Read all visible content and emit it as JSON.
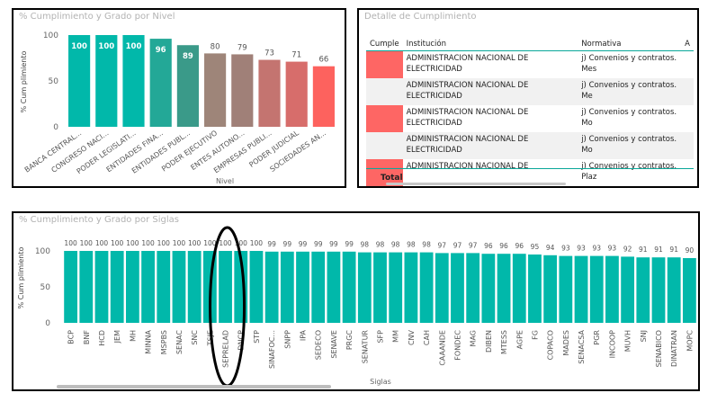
{
  "panel_nivel": {
    "title": "% Cumplimiento y Grado por Nivel",
    "chart_data": {
      "type": "bar",
      "title": "% Cumplimiento y Grado por Nivel",
      "xlabel": "Nivel",
      "ylabel": "% Cum plimiento",
      "ylim": [
        0,
        100
      ],
      "yticks": [
        "0",
        "50",
        "100"
      ],
      "categories": [
        "BANCA CENTRAL...",
        "CONGRESO NACI...",
        "PODER LEGISLATI...",
        "ENTIDADES FINA...",
        "ENTIDADES PUBL...",
        "PODER EJECUTIVO",
        "ENTES AUTONO...",
        "EMPRESAS PUBLI...",
        "PODER JUDICIAL",
        "SOCIEDADES AN..."
      ],
      "values": [
        100,
        100,
        100,
        96,
        89,
        80,
        79,
        73,
        71,
        66
      ],
      "labels": [
        "100",
        "100",
        "100",
        "96",
        "89",
        "80",
        "79",
        "73",
        "71",
        "66"
      ],
      "colors": [
        "#01b8aa",
        "#01b8aa",
        "#01b8aa",
        "#23a897",
        "#3a9a89",
        "#9e8579",
        "#a08078",
        "#c47470",
        "#d76d6b",
        "#fd625e"
      ],
      "label_inside": [
        true,
        true,
        true,
        true,
        true,
        false,
        false,
        false,
        false,
        false
      ],
      "grid": false
    }
  },
  "panel_detalle": {
    "title": "Detalle de Cumplimiento",
    "columns": [
      "Cumple",
      "Institución",
      "Normativa",
      "A"
    ],
    "rows": [
      {
        "institucion": "ADMINISTRACION NACIONAL DE ELECTRICIDAD",
        "normativa": "j) Convenios y contratos. Mes"
      },
      {
        "institucion": "ADMINISTRACION NACIONAL DE ELECTRICIDAD",
        "normativa": "j) Convenios y contratos. Me"
      },
      {
        "institucion": "ADMINISTRACION NACIONAL DE ELECTRICIDAD",
        "normativa": "j) Convenios y contratos. Mo"
      },
      {
        "institucion": "ADMINISTRACION NACIONAL DE ELECTRICIDAD",
        "normativa": "j) Convenios y contratos. Mo"
      },
      {
        "institucion": "ADMINISTRACION NACIONAL DE",
        "normativa": "j) Convenios y contratos. Plaz"
      }
    ],
    "total_label": "Total",
    "cumple_color": "#fe6664"
  },
  "panel_siglas": {
    "title": "% Cumplimiento y Grado por Siglas",
    "chart_data": {
      "type": "bar",
      "title": "% Cumplimiento y Grado por Siglas",
      "xlabel": "Siglas",
      "ylabel": "% Cum plimiento",
      "ylim": [
        0,
        100
      ],
      "yticks": [
        "0",
        "50",
        "100"
      ],
      "categories": [
        "BCP",
        "BNF",
        "HCD",
        "JEM",
        "MH",
        "MINNA",
        "MSPBS",
        "SENAC",
        "SNC",
        "TSJE",
        "SEPRELAD",
        "DNCP",
        "STP",
        "SINAFOC...",
        "SNPP",
        "IPA",
        "SEDECO",
        "SENAVE",
        "PRGC",
        "SENATUR",
        "SFP",
        "MM",
        "CNV",
        "CAH",
        "CAAANDE",
        "FONDEC",
        "MAG",
        "DIBEN",
        "MTESS",
        "AGPE",
        "FG",
        "COPACO",
        "MADES",
        "SENACSA",
        "PGR",
        "INCOOP",
        "MUVH",
        "SNJ",
        "SENABICO",
        "DINATRAN",
        "MOPC"
      ],
      "values": [
        100,
        100,
        100,
        100,
        100,
        100,
        100,
        100,
        100,
        100,
        100,
        100,
        100,
        99,
        99,
        99,
        99,
        99,
        99,
        98,
        98,
        98,
        98,
        98,
        97,
        97,
        97,
        96,
        96,
        96,
        95,
        94,
        93,
        93,
        93,
        93,
        92,
        91,
        91,
        91,
        90
      ],
      "labels": [
        "100",
        "100",
        "100",
        "100",
        "100",
        "100",
        "100",
        "100",
        "100",
        "100",
        "100",
        "100",
        "100",
        "99",
        "99",
        "99",
        "99",
        "99",
        "99",
        "98",
        "98",
        "98",
        "98",
        "98",
        "97",
        "97",
        "97",
        "96",
        "96",
        "96",
        "95",
        "94",
        "93",
        "93",
        "93",
        "93",
        "92",
        "91",
        "91",
        "91",
        "90"
      ],
      "bar_color": "#01b8aa",
      "grid": false,
      "annotation": "black ellipse highlighting SEPRELAD"
    }
  }
}
